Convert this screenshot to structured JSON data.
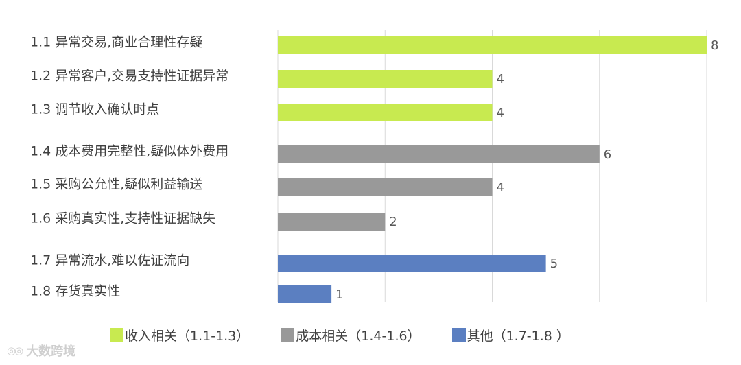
{
  "chart_data": {
    "type": "bar",
    "orientation": "horizontal",
    "categories": [
      "1.1 异常交易,商业合理性存疑",
      "1.2 异常客户,交易支持性证据异常",
      "1.3 调节收入确认时点",
      "1.4 成本费用完整性,疑似体外费用",
      "1.5 采购公允性,疑似利益输送",
      "1.6 采购真实性,支持性证据缺失",
      "1.7 异常流水,难以佐证流向",
      "1.8 存货真实性"
    ],
    "values": [
      8,
      4,
      4,
      6,
      4,
      2,
      5,
      1
    ],
    "groups": [
      0,
      0,
      0,
      1,
      1,
      1,
      2,
      2
    ],
    "xlim": [
      0,
      8
    ],
    "grid": true,
    "legend_position": "bottom",
    "legend": [
      {
        "label": "收入相关（1.1-1.3）",
        "color": "#c8ea50"
      },
      {
        "label": "成本相关（1.4-1.6）",
        "color": "#999999"
      },
      {
        "label": "其他（1.7-1.8 ）",
        "color": "#5b7fc1"
      }
    ]
  },
  "watermark": {
    "text": "大数跨境",
    "icon": "eye-logo-icon"
  }
}
